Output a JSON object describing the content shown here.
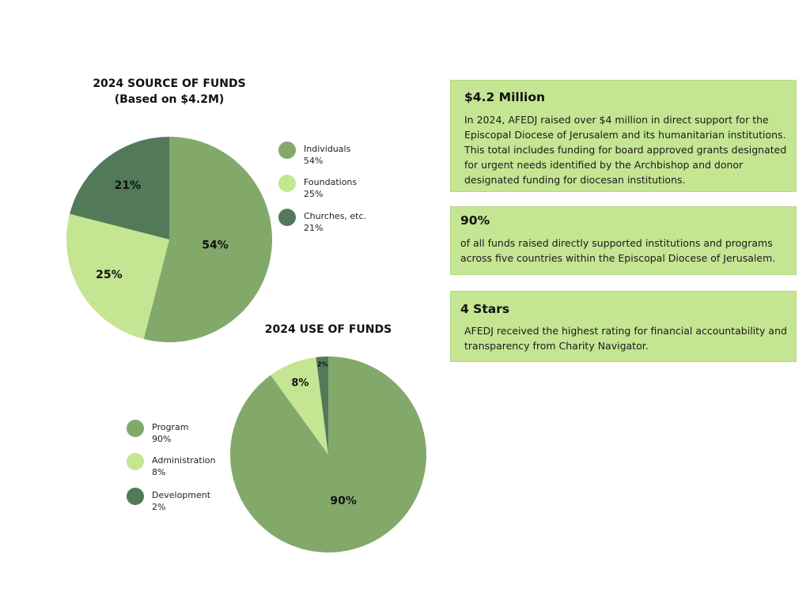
{
  "chart_data": [
    {
      "type": "pie",
      "title": "2024 SOURCE OF FUNDS",
      "subtitle": "(Based on $4.2M)",
      "categories": [
        "Individuals",
        "Foundations",
        "Churches, etc."
      ],
      "values": [
        54,
        25,
        21
      ],
      "slice_labels": [
        "54%",
        "25%",
        "21%"
      ],
      "legend_values": [
        "54%",
        "25%",
        "21%"
      ],
      "colors": [
        "#82a96a",
        "#c4e592",
        "#527a59"
      ],
      "legend_position": "right"
    },
    {
      "type": "pie",
      "title": "2024 USE OF FUNDS",
      "categories": [
        "Program",
        "Administration",
        "Development"
      ],
      "values": [
        90,
        8,
        2
      ],
      "slice_labels": [
        "90%",
        "8%",
        "2%"
      ],
      "legend_values": [
        "90%",
        "8%",
        "2%"
      ],
      "colors": [
        "#82a96a",
        "#c4e592",
        "#527a59"
      ],
      "legend_position": "left"
    }
  ],
  "cards": [
    {
      "heading": "$4.2 Million",
      "body": "In 2024, AFEDJ raised over $4 million in direct support for the Episcopal Diocese of Jerusalem and its humanitarian institutions. This total includes funding for board approved grants designated for urgent needs identified by the Archbishop and donor designated funding for diocesan institutions."
    },
    {
      "heading": "90%",
      "body": "of all funds raised directly supported institutions and programs across five countries within the Episcopal Diocese of Jerusalem."
    },
    {
      "heading": "4 Stars",
      "body": "AFEDJ received the highest rating for financial accountability and transparency from Charity Navigator."
    }
  ],
  "colors": {
    "card_background": "#c4e592",
    "card_border": "#b3d884"
  }
}
